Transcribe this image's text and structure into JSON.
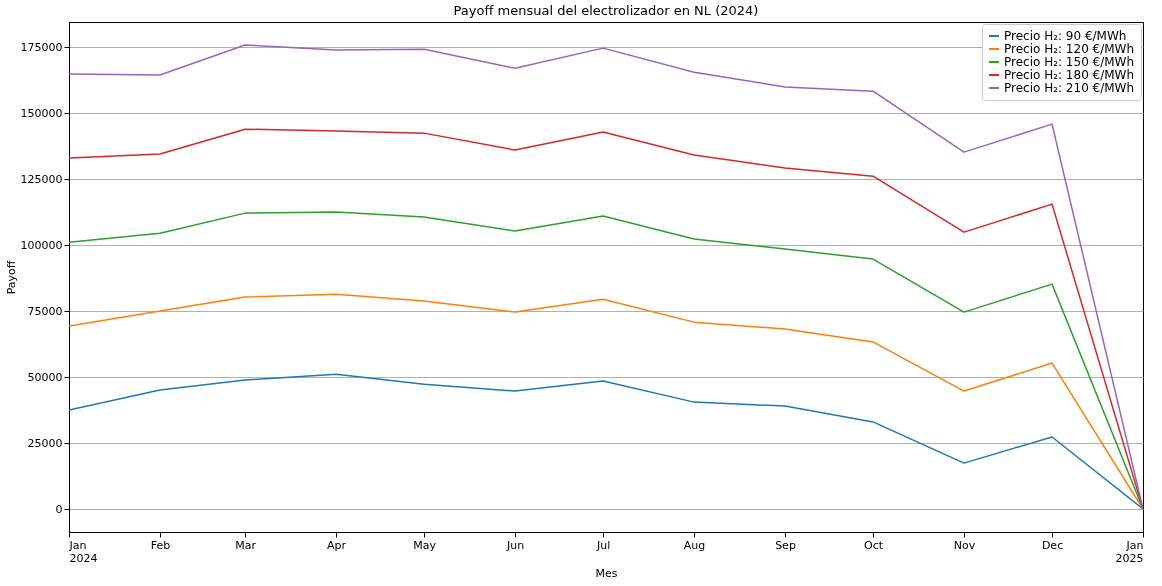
{
  "chart_data": {
    "type": "line",
    "title": "Payoff mensual del electrolizador en NL (2024)",
    "xlabel": "Mes",
    "ylabel": "Payoff",
    "x": [
      "2024-01",
      "2024-02",
      "2024-03",
      "2024-04",
      "2024-05",
      "2024-06",
      "2024-07",
      "2024-08",
      "2024-09",
      "2024-10",
      "2024-11",
      "2024-12",
      "2025-01"
    ],
    "series": [
      {
        "name": "Precio H₂: 90 €/MWh",
        "color": "#1f77b4",
        "values": [
          37500,
          45100,
          48900,
          51100,
          47300,
          44700,
          48500,
          40500,
          39000,
          33000,
          17400,
          27300,
          0
        ]
      },
      {
        "name": "Precio H₂: 120 €/MWh",
        "color": "#ff7f0e",
        "values": [
          69300,
          75000,
          80300,
          81400,
          78800,
          74600,
          79500,
          70800,
          68200,
          63300,
          44700,
          55300,
          0
        ]
      },
      {
        "name": "Precio H₂: 150 €/MWh",
        "color": "#2ca02c",
        "values": [
          101100,
          104500,
          112100,
          112500,
          110600,
          105300,
          111000,
          102300,
          98500,
          94700,
          74600,
          85200,
          0
        ]
      },
      {
        "name": "Precio H₂: 180 €/MWh",
        "color": "#d62728",
        "values": [
          133000,
          134500,
          143900,
          143200,
          142400,
          136000,
          142800,
          134100,
          129200,
          126100,
          104900,
          115500,
          0
        ]
      },
      {
        "name": "Precio H₂: 210 €/MWh",
        "color": "#9467bd",
        "values": [
          164800,
          164400,
          175800,
          173900,
          174200,
          167000,
          174600,
          165500,
          159900,
          158300,
          135200,
          145800,
          0
        ]
      }
    ],
    "xlim": [
      "2024-01",
      "2025-01"
    ],
    "xticks": [
      {
        "value": "2024-01",
        "label": "Jan\n2024"
      },
      {
        "value": "2024-02",
        "label": "Feb"
      },
      {
        "value": "2024-03",
        "label": "Mar"
      },
      {
        "value": "2024-04",
        "label": "Apr"
      },
      {
        "value": "2024-05",
        "label": "May"
      },
      {
        "value": "2024-06",
        "label": "Jun"
      },
      {
        "value": "2024-07",
        "label": "Jul"
      },
      {
        "value": "2024-08",
        "label": "Aug"
      },
      {
        "value": "2024-09",
        "label": "Sep"
      },
      {
        "value": "2024-10",
        "label": "Oct"
      },
      {
        "value": "2024-11",
        "label": "Nov"
      },
      {
        "value": "2024-12",
        "label": "Dec"
      },
      {
        "value": "2025-01",
        "label": "Jan\n2025"
      }
    ],
    "ylim": [
      -8700,
      184500
    ],
    "yticks": [
      0,
      25000,
      50000,
      75000,
      100000,
      125000,
      150000,
      175000
    ],
    "grid": "y",
    "legend": "top right",
    "marker": "none",
    "line_style": "solid"
  }
}
